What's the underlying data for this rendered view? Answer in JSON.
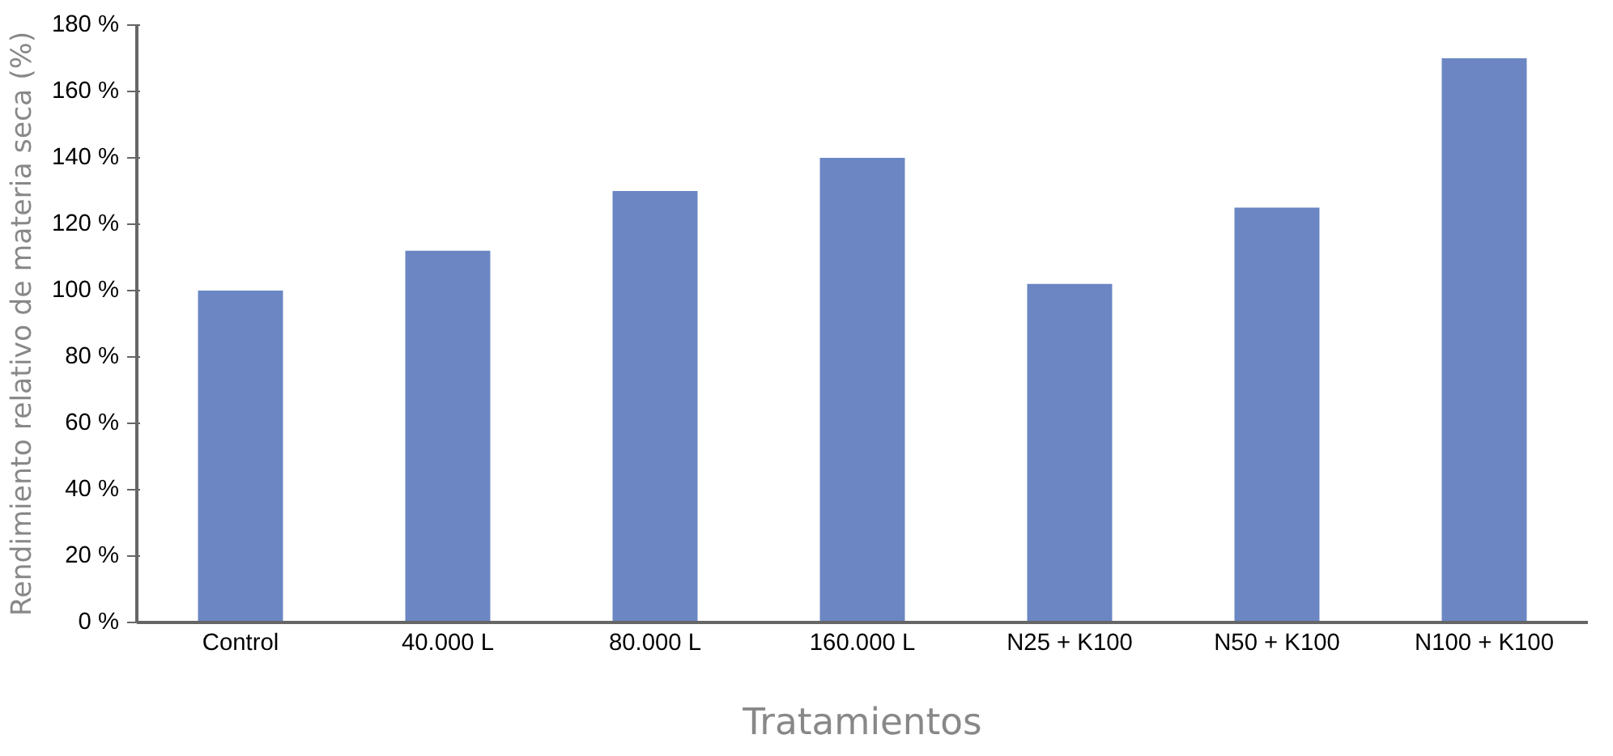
{
  "chart_data": {
    "type": "bar",
    "xlabel": "Tratamientos",
    "ylabel": "Rendimiento relativo de materia seca (%)",
    "categories": [
      "Control",
      "40.000 L",
      "80.000 L",
      "160.000 L",
      "N25 + K100",
      "N50 + K100",
      "N100 + K100"
    ],
    "values": [
      100,
      112,
      130,
      140,
      102,
      125,
      170
    ],
    "color": "#6b86c3",
    "ylim": [
      0,
      180
    ],
    "yticks": [
      {
        "value": 0,
        "label": "0 %"
      },
      {
        "value": 20,
        "label": "20 %"
      },
      {
        "value": 40,
        "label": "40 %"
      },
      {
        "value": 60,
        "label": "60 %"
      },
      {
        "value": 80,
        "label": "80 %"
      },
      {
        "value": 100,
        "label": "100 %"
      },
      {
        "value": 120,
        "label": "120 %"
      },
      {
        "value": 140,
        "label": "140 %"
      },
      {
        "value": 160,
        "label": "160 %"
      },
      {
        "value": 180,
        "label": "180 %"
      }
    ],
    "grid": false
  }
}
